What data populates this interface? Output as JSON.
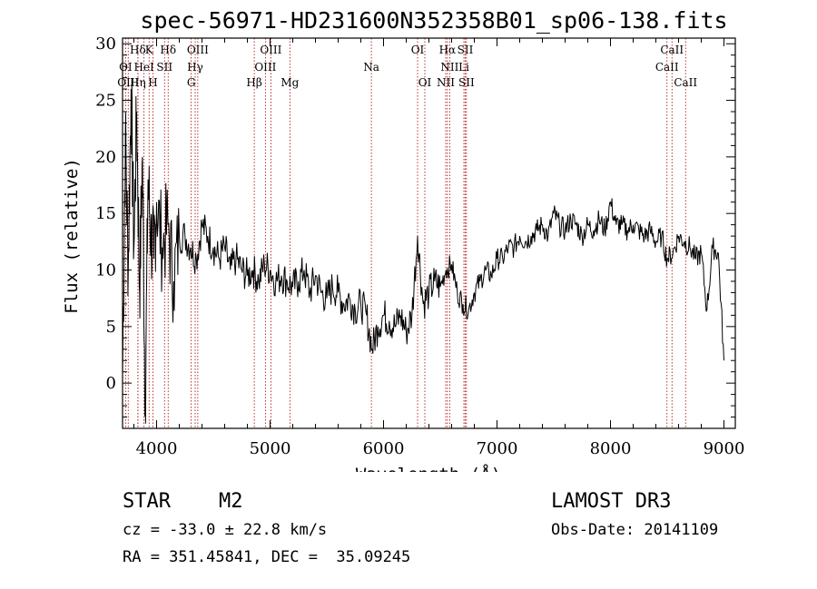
{
  "chart_data": {
    "type": "line",
    "title": "spec-56971-HD231600N352358B01_sp06-138.fits",
    "xlabel": "Wavelength (Å)",
    "ylabel": "Flux (relative)",
    "xlim": [
      3700,
      9100
    ],
    "ylim": [
      -4,
      30.5
    ],
    "xticks": [
      4000,
      5000,
      6000,
      7000,
      8000,
      9000
    ],
    "yticks": [
      0,
      5,
      10,
      15,
      20,
      25,
      30
    ],
    "series": [
      {
        "name": "flux",
        "x": [
          3700,
          3725,
          3750,
          3775,
          3800,
          3825,
          3850,
          3875,
          3900,
          3925,
          3950,
          3975,
          4000,
          4050,
          4100,
          4150,
          4200,
          4250,
          4300,
          4350,
          4400,
          4450,
          4500,
          4550,
          4600,
          4650,
          4700,
          4750,
          4800,
          4850,
          4900,
          4950,
          5000,
          5050,
          5100,
          5150,
          5200,
          5250,
          5300,
          5350,
          5400,
          5450,
          5500,
          5550,
          5600,
          5650,
          5700,
          5750,
          5800,
          5850,
          5900,
          5950,
          6000,
          6050,
          6100,
          6150,
          6200,
          6250,
          6300,
          6350,
          6400,
          6450,
          6500,
          6550,
          6600,
          6650,
          6700,
          6750,
          6800,
          6850,
          6900,
          6950,
          7000,
          7050,
          7100,
          7150,
          7200,
          7250,
          7300,
          7350,
          7400,
          7450,
          7500,
          7550,
          7600,
          7650,
          7700,
          7750,
          7800,
          7850,
          7900,
          7950,
          8000,
          8050,
          8100,
          8150,
          8200,
          8250,
          8300,
          8350,
          8400,
          8450,
          8500,
          8550,
          8600,
          8650,
          8700,
          8750,
          8800,
          8850,
          8900,
          8950,
          9000
        ],
        "y": [
          1,
          22,
          10,
          26,
          12,
          24,
          8,
          20,
          -2,
          18,
          13,
          11,
          16,
          12,
          14,
          9,
          13,
          13,
          12,
          11,
          14,
          13,
          12,
          11,
          12,
          10,
          11,
          10,
          9.5,
          10,
          9,
          10.5,
          10,
          9,
          9.5,
          9,
          8.5,
          9,
          10,
          8,
          9.5,
          8,
          7.5,
          8.5,
          8,
          7,
          7.5,
          6.5,
          7,
          6,
          3,
          5,
          6,
          5.5,
          5,
          6,
          4.5,
          6,
          13,
          7,
          8,
          9,
          8.5,
          10,
          10.5,
          8,
          7,
          6.5,
          8,
          9,
          10,
          9.5,
          11,
          11,
          12,
          12,
          13,
          12.5,
          13,
          13.5,
          14,
          13,
          15,
          14,
          13.5,
          14.5,
          14,
          13,
          14,
          13.5,
          14.5,
          13.5,
          16,
          14,
          14,
          13.5,
          14,
          13.5,
          13,
          13.5,
          12.5,
          13,
          11,
          11.5,
          13,
          12.5,
          12,
          11,
          11.5,
          6.5,
          12,
          11.5,
          2
        ]
      }
    ],
    "spectral_lines": [
      {
        "label": "Hδ",
        "x": 3835,
        "row": 0
      },
      {
        "label": "K",
        "x": 3934,
        "row": 0
      },
      {
        "label": "Hδ",
        "x": 4102,
        "row": 0
      },
      {
        "label": "OIII",
        "x": 4363,
        "row": 0
      },
      {
        "label": "OIII",
        "x": 5007,
        "row": 0
      },
      {
        "label": "OI",
        "x": 6300,
        "row": 0
      },
      {
        "label": "Hα",
        "x": 6563,
        "row": 0
      },
      {
        "label": "SII",
        "x": 6720,
        "row": 0
      },
      {
        "label": "CaII",
        "x": 8542,
        "row": 0
      },
      {
        "label": "OI",
        "x": 3727,
        "row": 1
      },
      {
        "label": "HeI",
        "x": 3889,
        "row": 1
      },
      {
        "label": "SII",
        "x": 4070,
        "row": 1
      },
      {
        "label": "Hγ",
        "x": 4340,
        "row": 1
      },
      {
        "label": "OIII",
        "x": 4959,
        "row": 1
      },
      {
        "label": "Na",
        "x": 5893,
        "row": 1
      },
      {
        "label": "NII",
        "x": 6583,
        "row": 1
      },
      {
        "label": "Li",
        "x": 6708,
        "row": 1
      },
      {
        "label": "CaII",
        "x": 8498,
        "row": 1
      },
      {
        "label": "OIII",
        "x": 3750,
        "row": 2
      },
      {
        "label": "Hη",
        "x": 3835,
        "row": 2
      },
      {
        "label": "H",
        "x": 3968,
        "row": 2
      },
      {
        "label": "G",
        "x": 4305,
        "row": 2
      },
      {
        "label": "Hβ",
        "x": 4861,
        "row": 2
      },
      {
        "label": "Mg",
        "x": 5175,
        "row": 2
      },
      {
        "label": "OI",
        "x": 6364,
        "row": 2
      },
      {
        "label": "NII",
        "x": 6548,
        "row": 2
      },
      {
        "label": "SII",
        "x": 6731,
        "row": 2
      },
      {
        "label": "CaII",
        "x": 8662,
        "row": 2
      }
    ],
    "line_color": "#000000",
    "marker_color": "#aa0000"
  },
  "info": {
    "object": "STAR    M2",
    "survey": "LAMOST DR3",
    "cz": "cz = -33.0 ± 22.8 km/s",
    "obsdate": "Obs-Date: 20141109",
    "radec": "RA = 351.45841, DEC =  35.09245"
  }
}
